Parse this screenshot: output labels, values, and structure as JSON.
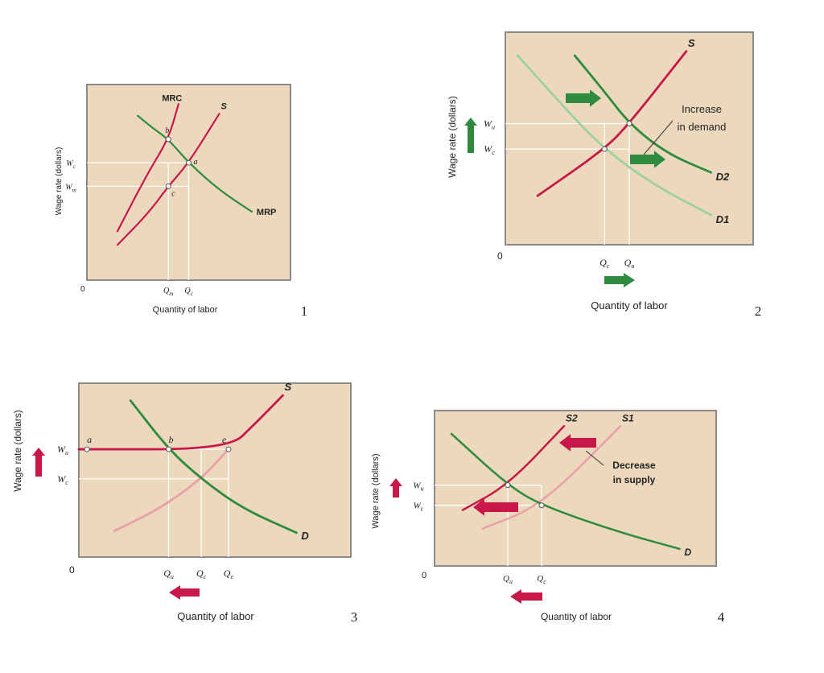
{
  "colors": {
    "panel_bg": "#ecd9bd",
    "frame": "#8a8a8a",
    "green": "#2e8b3e",
    "green_light": "#9fd09c",
    "red": "#c8184a",
    "red_light": "#e9a0a8",
    "grid": "#ffffff",
    "text": "#222222"
  },
  "chart_data": [
    {
      "type": "line",
      "figure_number": "1",
      "xlabel": "Quantity of labor",
      "ylabel": "Wage rate (dollars)",
      "origin_label": "0",
      "x_ticks": [
        {
          "label": "Qm",
          "x": 4.0
        },
        {
          "label": "Qc",
          "x": 5.0
        }
      ],
      "y_ticks": [
        {
          "label": "Wc",
          "y": 6.0
        },
        {
          "label": "Wm",
          "y": 4.8
        }
      ],
      "xlim": [
        0,
        10
      ],
      "ylim": [
        0,
        10
      ],
      "series": [
        {
          "name": "MRC",
          "color": "red",
          "points": [
            [
              1.5,
              2.5
            ],
            [
              3.0,
              5.5
            ],
            [
              4.0,
              7.2
            ],
            [
              4.5,
              9.0
            ]
          ]
        },
        {
          "name": "S",
          "color": "red",
          "points": [
            [
              1.5,
              1.8
            ],
            [
              3.0,
              3.4
            ],
            [
              4.0,
              4.8
            ],
            [
              5.0,
              6.0
            ],
            [
              6.5,
              8.5
            ]
          ]
        },
        {
          "name": "MRP",
          "color": "green",
          "points": [
            [
              2.5,
              8.4
            ],
            [
              3.2,
              7.8
            ],
            [
              4.0,
              7.2
            ],
            [
              5.0,
              6.0
            ],
            [
              6.5,
              4.6
            ],
            [
              8.1,
              3.5
            ]
          ]
        }
      ],
      "points": [
        {
          "label": "a",
          "x": 5.0,
          "y": 6.0
        },
        {
          "label": "b",
          "x": 4.0,
          "y": 7.2
        },
        {
          "label": "c",
          "x": 4.0,
          "y": 4.8
        }
      ]
    },
    {
      "type": "line",
      "figure_number": "2",
      "xlabel": "Quantity of labor",
      "ylabel": "Wage rate (dollars)",
      "origin_label": "0",
      "x_ticks": [
        {
          "label": "Qc",
          "x": 4.0
        },
        {
          "label": "Qu",
          "x": 5.0
        }
      ],
      "y_ticks": [
        {
          "label": "Wu",
          "y": 5.7
        },
        {
          "label": "Wc",
          "y": 4.5
        }
      ],
      "xlim": [
        0,
        10
      ],
      "ylim": [
        0,
        10
      ],
      "series": [
        {
          "name": "S",
          "color": "red",
          "points": [
            [
              1.3,
              2.3
            ],
            [
              4.0,
              4.5
            ],
            [
              5.0,
              5.7
            ],
            [
              7.3,
              9.1
            ]
          ]
        },
        {
          "name": "D1",
          "color": "green_light",
          "points": [
            [
              0.5,
              8.9
            ],
            [
              2.5,
              6.3
            ],
            [
              4.0,
              4.5
            ],
            [
              6.0,
              2.8
            ],
            [
              8.3,
              1.4
            ]
          ]
        },
        {
          "name": "D2",
          "color": "green",
          "points": [
            [
              2.8,
              8.9
            ],
            [
              4.0,
              7.2
            ],
            [
              5.0,
              5.7
            ],
            [
              6.5,
              4.3
            ],
            [
              8.3,
              3.4
            ]
          ]
        }
      ],
      "points": [
        {
          "label": "",
          "x": 4.0,
          "y": 4.5
        },
        {
          "label": "",
          "x": 5.0,
          "y": 5.7
        }
      ],
      "annotation": {
        "line1": "Increase",
        "line2": "in demand"
      }
    },
    {
      "type": "line",
      "figure_number": "3",
      "xlabel": "Quantity of labor",
      "ylabel": "Wage rate (dollars)",
      "origin_label": "0",
      "x_ticks": [
        {
          "label": "Qu",
          "x": 3.3
        },
        {
          "label": "Qc",
          "x": 4.5
        },
        {
          "label": "Qe",
          "x": 5.5
        }
      ],
      "y_ticks": [
        {
          "label": "Wu",
          "y": 6.2
        },
        {
          "label": "Wc",
          "y": 4.5
        }
      ],
      "xlim": [
        0,
        10
      ],
      "ylim": [
        0,
        10
      ],
      "series": [
        {
          "name": "S",
          "color": "red",
          "points": [
            [
              0,
              6.2
            ],
            [
              5.5,
              6.2
            ],
            [
              6.5,
              7.7
            ],
            [
              7.5,
              9.3
            ]
          ]
        },
        {
          "name": "",
          "color": "red_light",
          "points": [
            [
              1.3,
              1.5
            ],
            [
              3.0,
              2.8
            ],
            [
              4.5,
              4.5
            ],
            [
              5.5,
              6.2
            ]
          ]
        },
        {
          "name": "D",
          "color": "green",
          "points": [
            [
              1.9,
              9.0
            ],
            [
              3.3,
              6.2
            ],
            [
              4.5,
              4.5
            ],
            [
              6.0,
              2.8
            ],
            [
              8.0,
              1.4
            ]
          ]
        }
      ],
      "points": [
        {
          "label": "a",
          "x": 0.3,
          "y": 6.2
        },
        {
          "label": "b",
          "x": 3.3,
          "y": 6.2
        },
        {
          "label": "e",
          "x": 5.5,
          "y": 6.2
        }
      ]
    },
    {
      "type": "line",
      "figure_number": "4",
      "xlabel": "Quantity of labor",
      "ylabel": "Wage rate (dollars)",
      "origin_label": "0",
      "x_ticks": [
        {
          "label": "Qu",
          "x": 2.6
        },
        {
          "label": "Qc",
          "x": 3.8
        }
      ],
      "y_ticks": [
        {
          "label": "Wu",
          "y": 5.2
        },
        {
          "label": "Wc",
          "y": 3.9
        }
      ],
      "xlim": [
        0,
        10
      ],
      "ylim": [
        0,
        10
      ],
      "series": [
        {
          "name": "S2",
          "color": "red",
          "points": [
            [
              1.0,
              3.6
            ],
            [
              2.6,
              5.2
            ],
            [
              4.6,
              9.0
            ]
          ]
        },
        {
          "name": "S1",
          "color": "red_light",
          "points": [
            [
              1.7,
              2.4
            ],
            [
              3.8,
              3.9
            ],
            [
              6.6,
              9.0
            ]
          ]
        },
        {
          "name": "D",
          "color": "green",
          "points": [
            [
              0.6,
              8.5
            ],
            [
              2.6,
              5.2
            ],
            [
              3.8,
              3.9
            ],
            [
              6.5,
              2.2
            ],
            [
              8.7,
              1.1
            ]
          ]
        }
      ],
      "points": [
        {
          "label": "",
          "x": 2.6,
          "y": 5.2
        },
        {
          "label": "",
          "x": 3.8,
          "y": 3.9
        }
      ],
      "annotation": {
        "line1": "Decrease",
        "line2": "in supply"
      }
    }
  ]
}
